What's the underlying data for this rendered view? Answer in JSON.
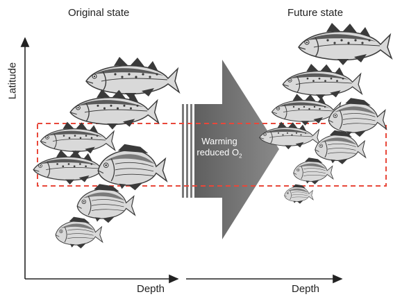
{
  "titles": {
    "left": "Original state",
    "right": "Future state"
  },
  "axes": {
    "y_label": "Latitude",
    "x_label_left": "Depth",
    "x_label_right": "Depth"
  },
  "arrow": {
    "line1": "Warming",
    "line2_prefix": "reduced O",
    "line2_sub": "2"
  },
  "colors": {
    "arrow": "#7a7a7a",
    "dashed_box": "#e8473a",
    "axis": "#222222",
    "fish_dark": "#3a3a3a",
    "fish_light": "#d9d9d9"
  },
  "fish_left": [
    {
      "kind": "cod",
      "scale": 1.0
    },
    {
      "kind": "cod",
      "scale": 0.95
    },
    {
      "kind": "cod",
      "scale": 0.8
    },
    {
      "kind": "cod",
      "scale": 0.82
    },
    {
      "kind": "bream",
      "scale": 0.95
    },
    {
      "kind": "bream",
      "scale": 0.8
    },
    {
      "kind": "bream",
      "scale": 0.65
    }
  ],
  "fish_right": [
    {
      "kind": "cod",
      "scale": 1.0
    },
    {
      "kind": "cod",
      "scale": 0.85
    },
    {
      "kind": "cod",
      "scale": 0.75
    },
    {
      "kind": "bream",
      "scale": 0.8
    },
    {
      "kind": "cod",
      "scale": 0.65
    },
    {
      "kind": "bream",
      "scale": 0.7
    },
    {
      "kind": "bream",
      "scale": 0.55
    },
    {
      "kind": "bream",
      "scale": 0.4
    }
  ]
}
